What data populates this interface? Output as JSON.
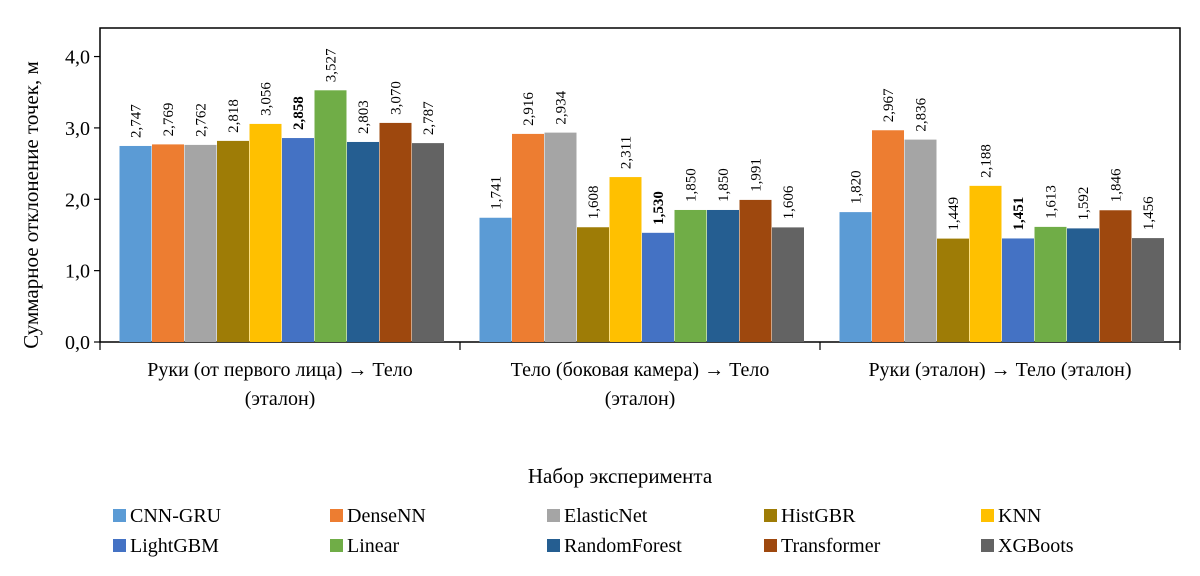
{
  "chart_data": {
    "type": "bar",
    "title": "",
    "xlabel": "Набор эксперимента",
    "ylabel": "Суммарное отклонение точек, м",
    "ylim": [
      0,
      4.4
    ],
    "yticks": [
      "0,0",
      "1,0",
      "2,0",
      "3,0",
      "4,0"
    ],
    "ytick_values": [
      0,
      1,
      2,
      3,
      4
    ],
    "grid": false,
    "legend_position": "bottom",
    "categories": [
      [
        "Руки (от первого лица) → Тело",
        "(эталон)"
      ],
      [
        "Тело (боковая камера) → Тело",
        "(эталон)"
      ],
      [
        "Руки (эталон) → Тело (эталон)"
      ]
    ],
    "series": [
      {
        "name": "CNN-GRU",
        "color": "#5b9bd5",
        "values": [
          2.747,
          1.741,
          1.82
        ],
        "labels": [
          "2,747",
          "1,741",
          "1,820"
        ]
      },
      {
        "name": "DenseNN",
        "color": "#ed7d31",
        "values": [
          2.769,
          2.916,
          2.967
        ],
        "labels": [
          "2,769",
          "2,916",
          "2,967"
        ]
      },
      {
        "name": "ElasticNet",
        "color": "#a5a5a5",
        "values": [
          2.762,
          2.934,
          2.836
        ],
        "labels": [
          "2,762",
          "2,934",
          "2,836"
        ]
      },
      {
        "name": "HistGBR",
        "color": "#9e7c06",
        "values": [
          2.818,
          1.608,
          1.449
        ],
        "labels": [
          "2,818",
          "1,608",
          "1,449"
        ]
      },
      {
        "name": "KNN",
        "color": "#ffc000",
        "values": [
          3.056,
          2.311,
          2.188
        ],
        "labels": [
          "3,056",
          "2,311",
          "2,188"
        ]
      },
      {
        "name": "LightGBM",
        "color": "#4472c4",
        "values": [
          2.858,
          1.53,
          1.451
        ],
        "labels": [
          "2,858",
          "1,530",
          "1,451"
        ],
        "bold_labels": true
      },
      {
        "name": "Linear",
        "color": "#70ad47",
        "values": [
          3.527,
          1.85,
          1.613
        ],
        "labels": [
          "3,527",
          "1,850",
          "1,613"
        ]
      },
      {
        "name": "RandomForest",
        "color": "#255e91",
        "values": [
          2.803,
          1.85,
          1.592
        ],
        "labels": [
          "2,803",
          "1,850",
          "1,592"
        ]
      },
      {
        "name": "Transformer",
        "color": "#9e480e",
        "values": [
          3.07,
          1.991,
          1.846
        ],
        "labels": [
          "3,070",
          "1,991",
          "1,846"
        ]
      },
      {
        "name": "XGBoots",
        "color": "#636363",
        "values": [
          2.787,
          1.606,
          1.456
        ],
        "labels": [
          "2,787",
          "1,606",
          "1,456"
        ]
      }
    ]
  }
}
